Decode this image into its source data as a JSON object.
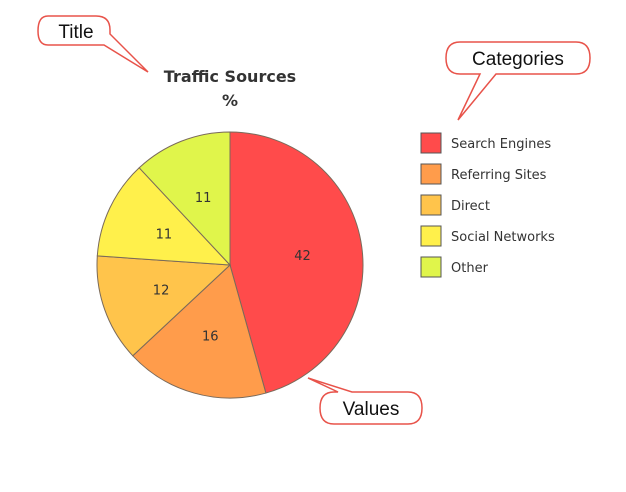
{
  "chart_data": {
    "type": "pie",
    "title": "Traffic Sources",
    "subtitle": "%",
    "categories": [
      "Search Engines",
      "Referring Sites",
      "Direct",
      "Social Networks",
      "Other"
    ],
    "values": [
      42,
      16,
      12,
      11,
      11
    ],
    "colors": [
      "#ff4b4b",
      "#ff9c4b",
      "#ffc44b",
      "#fff04b",
      "#e0f54b"
    ],
    "legend_position": "right"
  },
  "callouts": {
    "title": "Title",
    "categories": "Categories",
    "values": "Values"
  }
}
